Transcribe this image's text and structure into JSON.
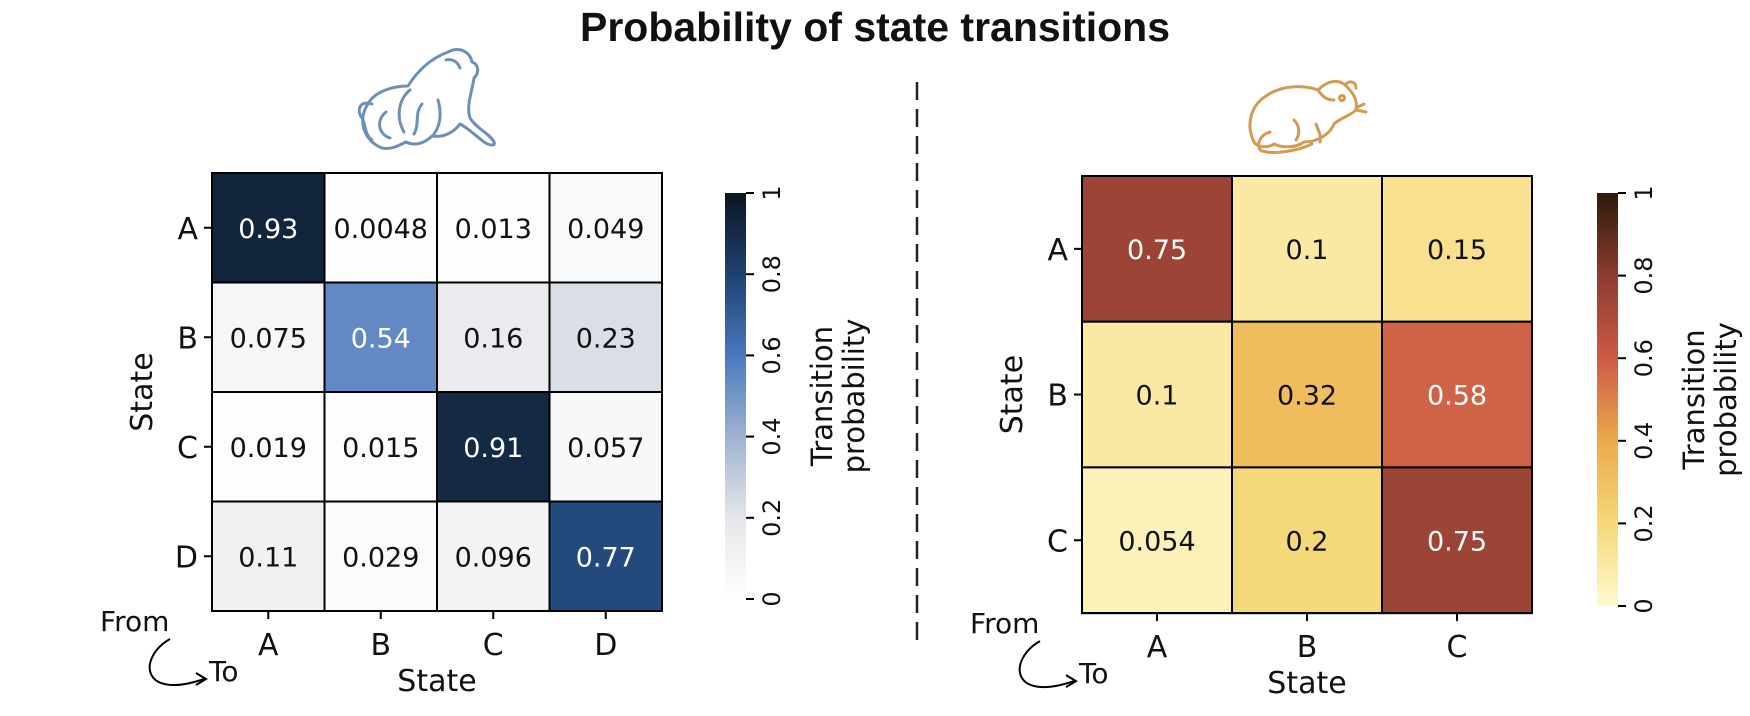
{
  "title": "Probability of state transitions",
  "chart_data": [
    {
      "type": "heatmap",
      "panel": "left",
      "icon": "monkey-icon",
      "xlabel": "State",
      "ylabel": "State",
      "corner_from": "From",
      "corner_to": "To",
      "x_categories": [
        "A",
        "B",
        "C",
        "D"
      ],
      "y_categories": [
        "A",
        "B",
        "C",
        "D"
      ],
      "values": [
        [
          0.93,
          0.0048,
          0.013,
          0.049
        ],
        [
          0.075,
          0.54,
          0.16,
          0.23
        ],
        [
          0.019,
          0.015,
          0.91,
          0.057
        ],
        [
          0.11,
          0.029,
          0.096,
          0.77
        ]
      ],
      "cell_labels": [
        [
          "0.93",
          "0.0048",
          "0.013",
          "0.049"
        ],
        [
          "0.075",
          "0.54",
          "0.16",
          "0.23"
        ],
        [
          "0.019",
          "0.015",
          "0.91",
          "0.057"
        ],
        [
          "0.11",
          "0.029",
          "0.096",
          "0.77"
        ]
      ],
      "colorbar": {
        "label_line1": "Transition",
        "label_line2": "probability",
        "range": [
          0,
          1
        ],
        "ticks": [
          "0",
          "0.2",
          "0.4",
          "0.6",
          "0.8",
          "1"
        ],
        "colors": [
          "#ffffff",
          "#e4e6ea",
          "#9fb2d1",
          "#4a78be",
          "#1d4271",
          "#0d1520"
        ]
      }
    },
    {
      "type": "heatmap",
      "panel": "right",
      "icon": "rat-icon",
      "xlabel": "State",
      "ylabel": "State",
      "corner_from": "From",
      "corner_to": "To",
      "x_categories": [
        "A",
        "B",
        "C"
      ],
      "y_categories": [
        "A",
        "B",
        "C"
      ],
      "values": [
        [
          0.75,
          0.1,
          0.15
        ],
        [
          0.1,
          0.32,
          0.58
        ],
        [
          0.054,
          0.2,
          0.75
        ]
      ],
      "cell_labels": [
        [
          "0.75",
          "0.1",
          "0.15"
        ],
        [
          "0.1",
          "0.32",
          "0.58"
        ],
        [
          "0.054",
          "0.2",
          "0.75"
        ]
      ],
      "colorbar": {
        "label_line1": "Transition",
        "label_line2": "probability",
        "range": [
          0,
          1
        ],
        "ticks": [
          "0",
          "0.2",
          "0.4",
          "0.6",
          "0.8",
          "1"
        ],
        "colors": [
          "#fffad0",
          "#f4d879",
          "#eba94c",
          "#cd5a45",
          "#8c3c30",
          "#2b1b0b"
        ]
      }
    }
  ],
  "colors": {
    "monkey_outline": "#6f8fb8",
    "rat_outline": "#d39a52",
    "divider": "#222222"
  }
}
